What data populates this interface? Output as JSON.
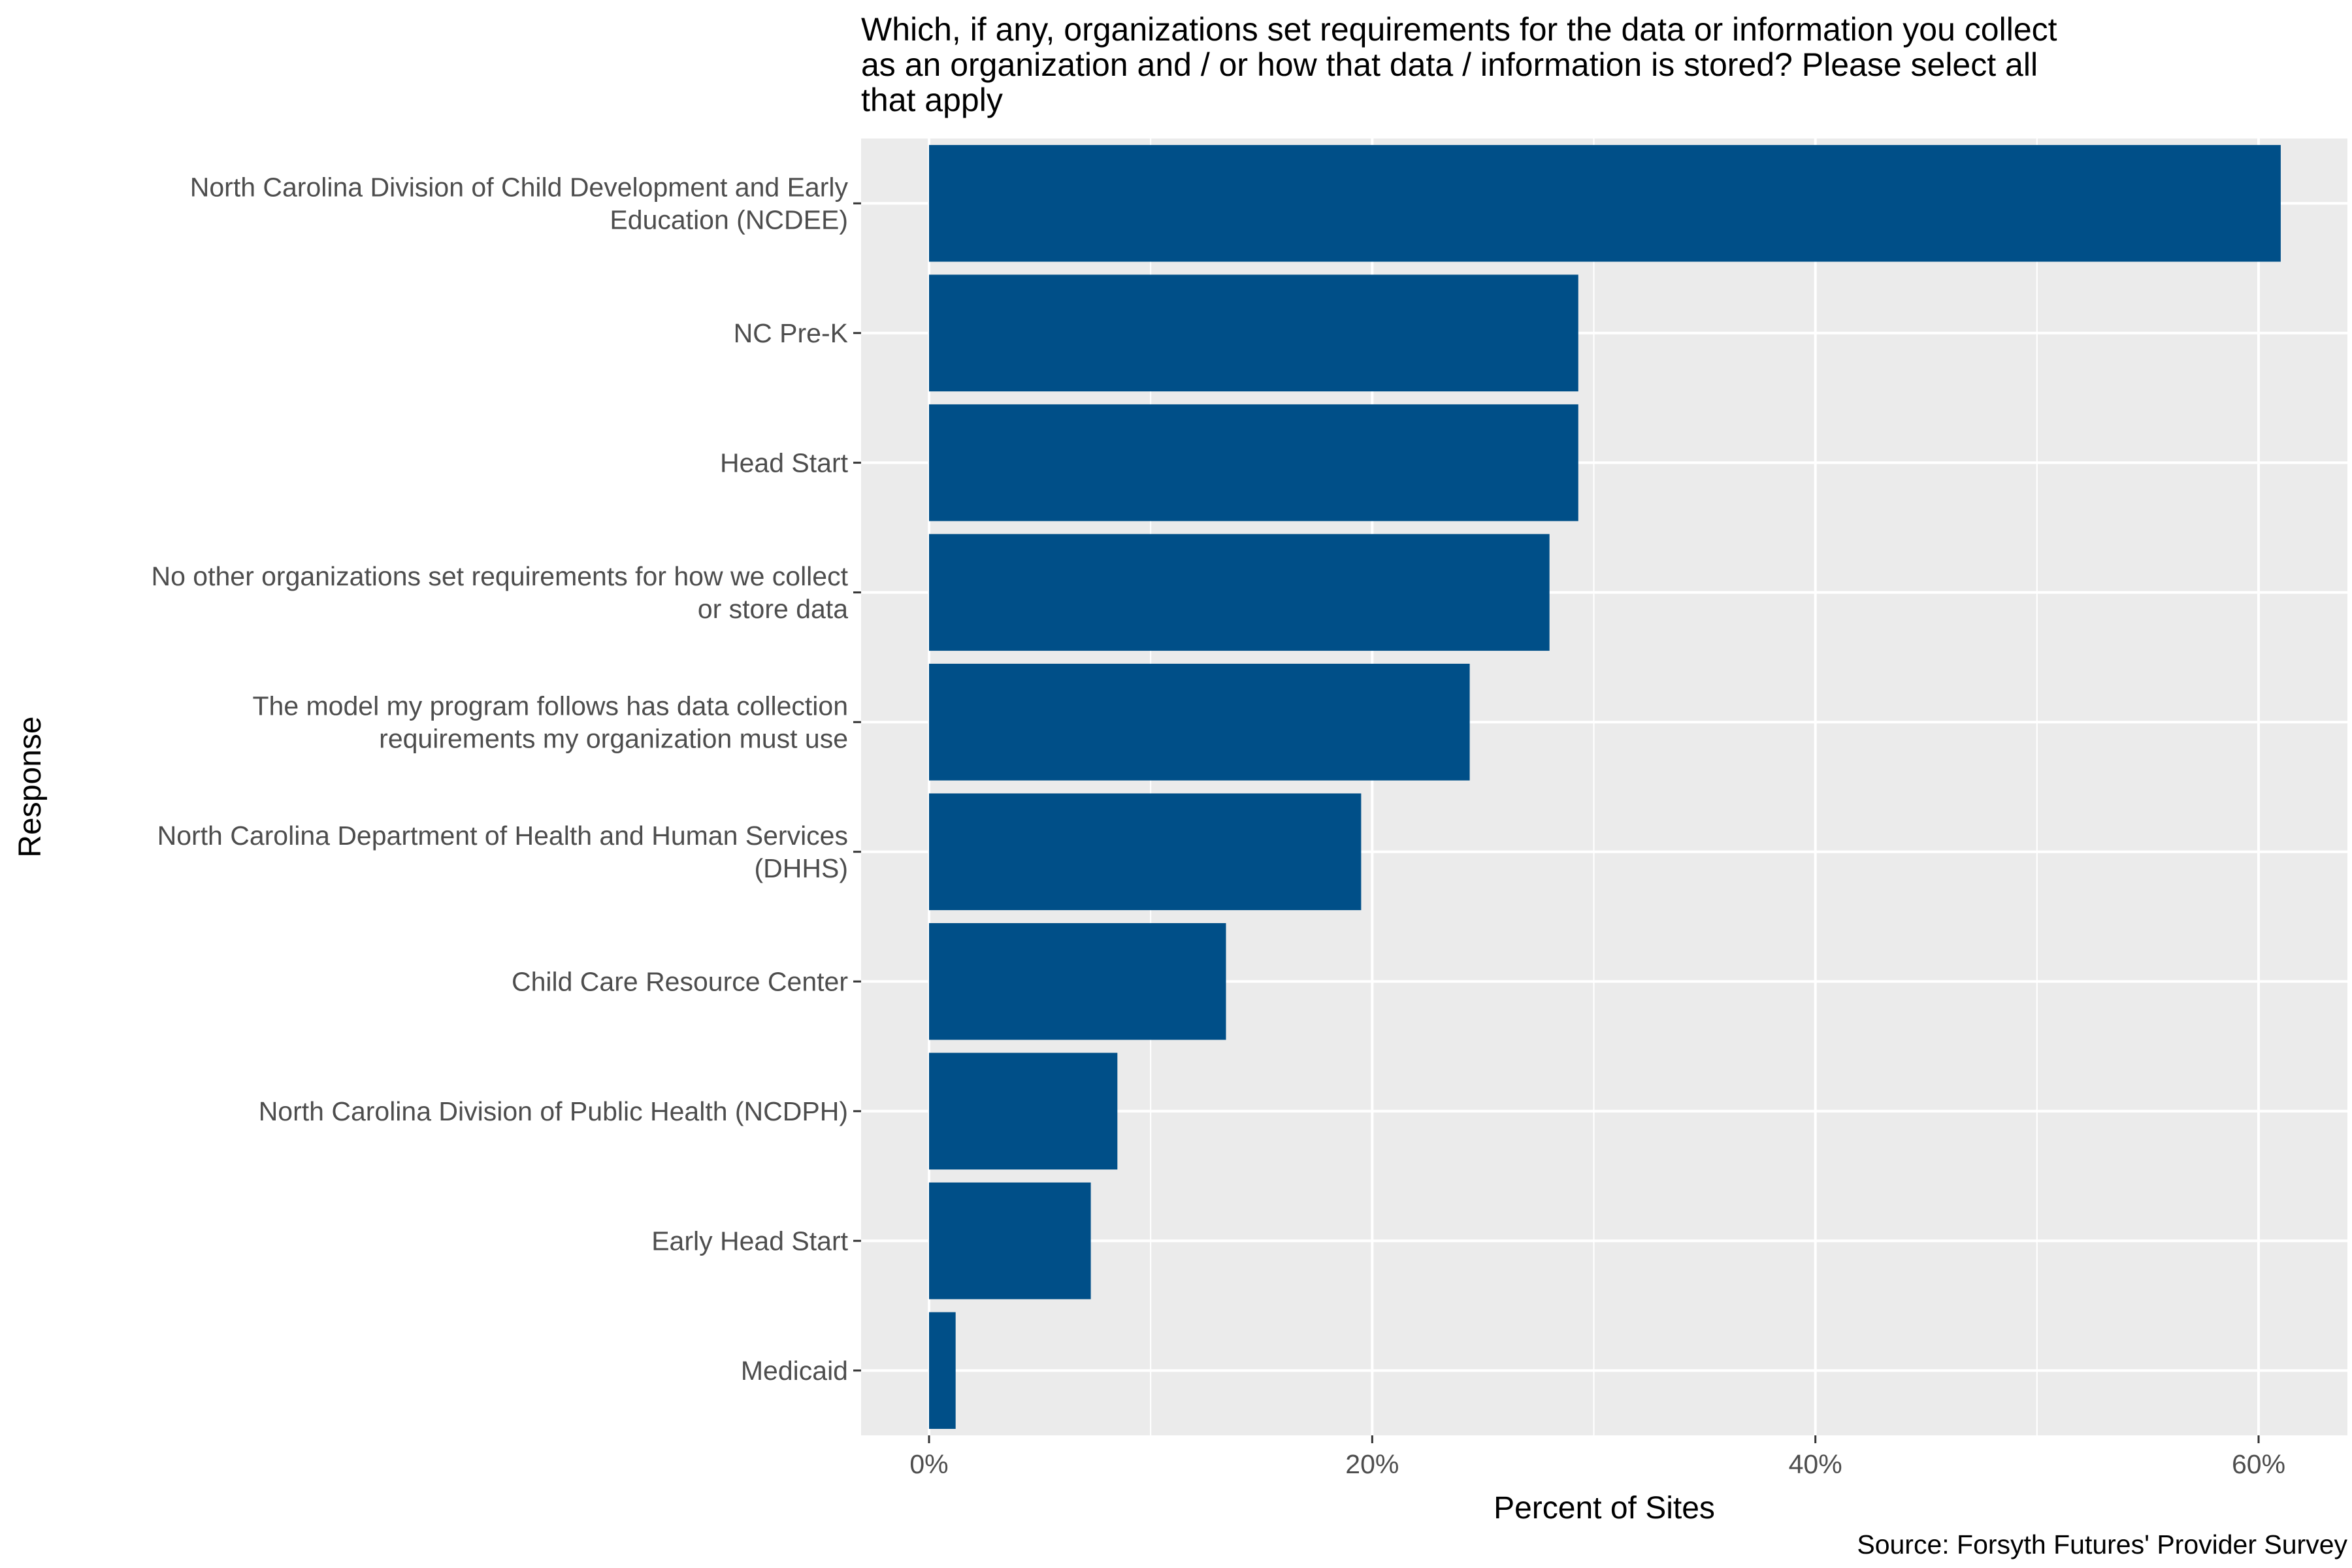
{
  "chart_data": {
    "type": "bar",
    "orientation": "horizontal",
    "title": [
      "Which, if any, organizations set requirements for the data or information you collect",
      "as an organization and / or how that data / information is stored? Please select all",
      "that apply"
    ],
    "xlabel": "Percent of Sites",
    "ylabel": "Response",
    "caption": "Source: Forsyth Futures' Provider Survey",
    "xlim": [
      -3,
      64
    ],
    "xticks": [
      0,
      20,
      40,
      60
    ],
    "xtick_labels": [
      "0%",
      "20%",
      "40%",
      "60%"
    ],
    "grid": true,
    "bar_color": "#004F88",
    "panel_color": "#EBEBEB",
    "categories": [
      [
        "North Carolina Division of Child Development and Early",
        "Education (NCDEE)"
      ],
      [
        "NC Pre-K"
      ],
      [
        "Head Start"
      ],
      [
        "No other organizations set requirements for how we collect",
        "or store data"
      ],
      [
        "The model my program follows has data collection",
        "requirements my organization must use"
      ],
      [
        "North Carolina Department of Health and Human Services",
        "(DHHS)"
      ],
      [
        "Child Care Resource Center"
      ],
      [
        "North Carolina Division of Public Health (NCDPH)"
      ],
      [
        "Early Head Start"
      ],
      [
        "Medicaid"
      ]
    ],
    "values": [
      61.0,
      29.3,
      29.3,
      28.0,
      24.4,
      19.5,
      13.4,
      8.5,
      7.3,
      1.2
    ]
  }
}
